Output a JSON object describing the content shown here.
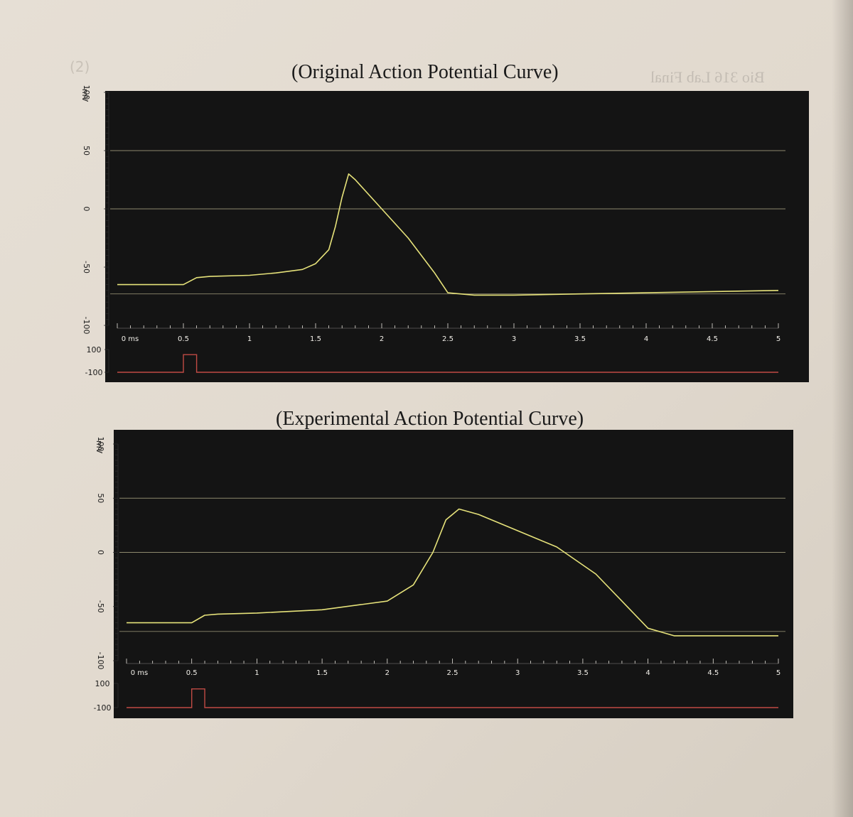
{
  "header_mark": "(2)",
  "mirrored_text": "Bio 316 Lab Final",
  "charts_text": {
    "top_title": "(Original Action Potential Curve)",
    "bottom_title": "(Experimental Action Potential Curve)"
  },
  "colors": {
    "paper": "#e3dcd2",
    "panel": "#141414",
    "trace": "#e6e27a",
    "stimulus": "#c04a44",
    "reference_line": "#b7b08c"
  },
  "chart_data": [
    {
      "type": "line",
      "title": "(Original Action Potential Curve)",
      "ylabel": "mV",
      "ylim": [
        -100,
        100
      ],
      "y_ticks": [
        "100",
        "50",
        "0",
        "-50",
        "-100"
      ],
      "xlim": [
        0,
        5
      ],
      "x_ticks": [
        "0 ms",
        "0.5",
        "1",
        "1.5",
        "2",
        "2.5",
        "3",
        "3.5",
        "4",
        "4.5",
        "5"
      ],
      "x_unit": "ms",
      "reference_lines": [
        50,
        0,
        -73
      ],
      "series": [
        {
          "x": [
            0,
            0.5,
            0.6,
            0.7,
            1.0,
            1.2,
            1.4,
            1.5,
            1.6,
            1.65,
            1.7,
            1.75,
            1.8,
            2.0,
            2.2,
            2.4,
            2.5,
            2.7,
            3.0,
            3.5,
            4.0,
            4.5,
            5.0
          ],
          "y": [
            -65,
            -65,
            -59,
            -58,
            -57,
            -55,
            -52,
            -47,
            -35,
            -15,
            10,
            30,
            25,
            0,
            -25,
            -55,
            -72,
            -74,
            -74,
            -73,
            -72,
            -71,
            -70
          ]
        }
      ],
      "stimulus": {
        "ylim": [
          -100,
          100
        ],
        "y_ticks": [
          "100",
          "-100"
        ],
        "pulse_start": 0.5,
        "pulse_end": 0.6,
        "pulse_level": 100,
        "baseline": -100
      }
    },
    {
      "type": "line",
      "title": "(Experimental Action Potential Curve)",
      "ylabel": "mV",
      "ylim": [
        -100,
        100
      ],
      "y_ticks": [
        "100",
        "50",
        "0",
        "-50",
        "-100"
      ],
      "xlim": [
        0,
        5
      ],
      "x_ticks": [
        "0 ms",
        "0.5",
        "1",
        "1.5",
        "2",
        "2.5",
        "3",
        "3.5",
        "4",
        "4.5",
        "5"
      ],
      "x_unit": "ms",
      "reference_lines": [
        50,
        0,
        -73
      ],
      "series": [
        {
          "x": [
            0,
            0.5,
            0.6,
            0.7,
            1.0,
            1.5,
            2.0,
            2.2,
            2.35,
            2.45,
            2.55,
            2.7,
            3.0,
            3.3,
            3.6,
            3.8,
            4.0,
            4.2,
            4.5,
            5.0
          ],
          "y": [
            -65,
            -65,
            -58,
            -57,
            -56,
            -53,
            -45,
            -30,
            0,
            30,
            40,
            35,
            20,
            5,
            -20,
            -45,
            -70,
            -77,
            -77,
            -77
          ]
        }
      ],
      "stimulus": {
        "ylim": [
          -100,
          100
        ],
        "y_ticks": [
          "100",
          "-100"
        ],
        "pulse_start": 0.5,
        "pulse_end": 0.6,
        "pulse_level": 100,
        "baseline": -100
      }
    }
  ]
}
